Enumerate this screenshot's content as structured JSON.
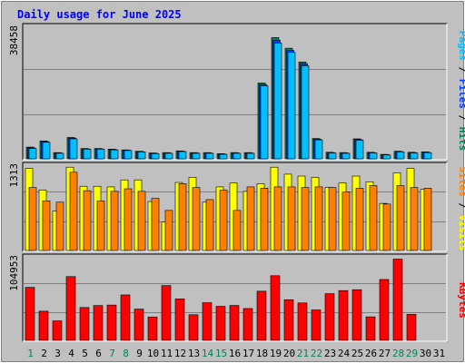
{
  "title": "Daily usage for June 2025",
  "colors": {
    "background": "#c0c0c0",
    "panel": "#c0c0c0",
    "title": "#0000ff",
    "pages": "#00c0ff",
    "files": "#0040ff",
    "hits": "#00805c",
    "sites": "#ff8000",
    "visits": "#ffff00",
    "kbytes": "#ff0000",
    "weekend": "#00805c",
    "weekday": "#000000",
    "gridline": "#808080"
  },
  "chart_data": [
    {
      "type": "bar",
      "title": "Daily usage for June 2025",
      "panel": "hits-files-pages",
      "ylabel_parts": [
        "Pages",
        "Files",
        "Hits"
      ],
      "ymax_label": "38458",
      "ylim": [
        0,
        38458
      ],
      "categories": [
        "1",
        "2",
        "3",
        "4",
        "5",
        "6",
        "7",
        "8",
        "9",
        "10",
        "11",
        "12",
        "13",
        "14",
        "15",
        "16",
        "17",
        "18",
        "19",
        "20",
        "21",
        "22",
        "23",
        "24",
        "25",
        "26",
        "27",
        "28",
        "29",
        "30",
        "31"
      ],
      "series": [
        {
          "name": "Hits",
          "values": [
            3400,
            5200,
            1800,
            6200,
            3000,
            3000,
            2800,
            2600,
            2200,
            1700,
            1800,
            2300,
            1800,
            1800,
            1500,
            1800,
            1800,
            22000,
            35200,
            32100,
            28100,
            5900,
            1900,
            1800,
            5800,
            1900,
            1300,
            2200,
            1900,
            2000,
            null
          ]
        },
        {
          "name": "Files",
          "values": [
            3200,
            5000,
            1700,
            6000,
            2900,
            2900,
            2700,
            2500,
            2100,
            1600,
            1700,
            2200,
            1700,
            1700,
            1400,
            1700,
            1700,
            21600,
            34400,
            31500,
            27600,
            5700,
            1800,
            1700,
            5600,
            1800,
            1200,
            2100,
            1800,
            1900,
            null
          ]
        },
        {
          "name": "Pages",
          "values": [
            3000,
            4800,
            1600,
            5800,
            2800,
            2800,
            2600,
            2400,
            2000,
            1500,
            1600,
            2100,
            1600,
            1600,
            1300,
            1600,
            1600,
            21200,
            33600,
            30900,
            27000,
            5500,
            1700,
            1600,
            5400,
            1700,
            1100,
            2000,
            1700,
            1800,
            null
          ]
        }
      ]
    },
    {
      "type": "bar",
      "panel": "visits-sites",
      "ylabel_parts": [
        "Sites",
        "Visits"
      ],
      "ymax_label": "1313",
      "ylim": [
        0,
        1313
      ],
      "categories": [
        "1",
        "2",
        "3",
        "4",
        "5",
        "6",
        "7",
        "8",
        "9",
        "10",
        "11",
        "12",
        "13",
        "14",
        "15",
        "16",
        "17",
        "18",
        "19",
        "20",
        "21",
        "22",
        "23",
        "24",
        "25",
        "26",
        "27",
        "28",
        "29",
        "30",
        "31"
      ],
      "series": [
        {
          "name": "Visits",
          "values": [
            1290,
            950,
            620,
            1310,
            1010,
            1010,
            1000,
            1110,
            1110,
            770,
            450,
            1070,
            1150,
            760,
            1000,
            1060,
            930,
            1050,
            1310,
            1200,
            1170,
            1150,
            990,
            1060,
            1170,
            1080,
            740,
            1220,
            1290,
            960,
            null
          ]
        },
        {
          "name": "Sites",
          "values": [
            990,
            780,
            760,
            1230,
            940,
            780,
            930,
            970,
            930,
            820,
            630,
            1050,
            990,
            800,
            950,
            630,
            1000,
            980,
            1000,
            1000,
            990,
            1000,
            990,
            920,
            980,
            1020,
            730,
            1020,
            990,
            980,
            null
          ]
        }
      ]
    },
    {
      "type": "bar",
      "panel": "kbytes",
      "ylabel_parts": [
        "KBytes"
      ],
      "ymax_label": "104953",
      "ylim": [
        0,
        104953
      ],
      "categories": [
        "1",
        "2",
        "3",
        "4",
        "5",
        "6",
        "7",
        "8",
        "9",
        "10",
        "11",
        "12",
        "13",
        "14",
        "15",
        "16",
        "17",
        "18",
        "19",
        "20",
        "21",
        "22",
        "23",
        "24",
        "25",
        "26",
        "27",
        "28",
        "29",
        "30",
        "31"
      ],
      "series": [
        {
          "name": "KBytes",
          "values": [
            67300,
            37000,
            24700,
            81000,
            41700,
            44200,
            44800,
            57700,
            39700,
            29500,
            69600,
            52600,
            32500,
            47800,
            43200,
            44300,
            40400,
            62400,
            82100,
            51600,
            47500,
            38600,
            59300,
            63200,
            64300,
            29800,
            77300,
            103200,
            33000,
            null,
            null
          ]
        }
      ]
    }
  ],
  "x_labels": [
    {
      "text": "1",
      "weekend": true
    },
    {
      "text": "2",
      "weekend": false
    },
    {
      "text": "3",
      "weekend": false
    },
    {
      "text": "4",
      "weekend": false
    },
    {
      "text": "5",
      "weekend": false
    },
    {
      "text": "6",
      "weekend": false
    },
    {
      "text": "7",
      "weekend": true
    },
    {
      "text": "8",
      "weekend": true
    },
    {
      "text": "9",
      "weekend": false
    },
    {
      "text": "10",
      "weekend": false
    },
    {
      "text": "11",
      "weekend": false
    },
    {
      "text": "12",
      "weekend": false
    },
    {
      "text": "13",
      "weekend": false
    },
    {
      "text": "14",
      "weekend": true
    },
    {
      "text": "15",
      "weekend": true
    },
    {
      "text": "16",
      "weekend": false
    },
    {
      "text": "17",
      "weekend": false
    },
    {
      "text": "18",
      "weekend": false
    },
    {
      "text": "19",
      "weekend": false
    },
    {
      "text": "20",
      "weekend": false
    },
    {
      "text": "21",
      "weekend": true
    },
    {
      "text": "22",
      "weekend": true
    },
    {
      "text": "23",
      "weekend": false
    },
    {
      "text": "24",
      "weekend": false
    },
    {
      "text": "25",
      "weekend": false
    },
    {
      "text": "26",
      "weekend": false
    },
    {
      "text": "27",
      "weekend": false
    },
    {
      "text": "28",
      "weekend": true
    },
    {
      "text": "29",
      "weekend": true
    },
    {
      "text": "30",
      "weekend": false
    },
    {
      "text": "31",
      "weekend": false
    }
  ]
}
